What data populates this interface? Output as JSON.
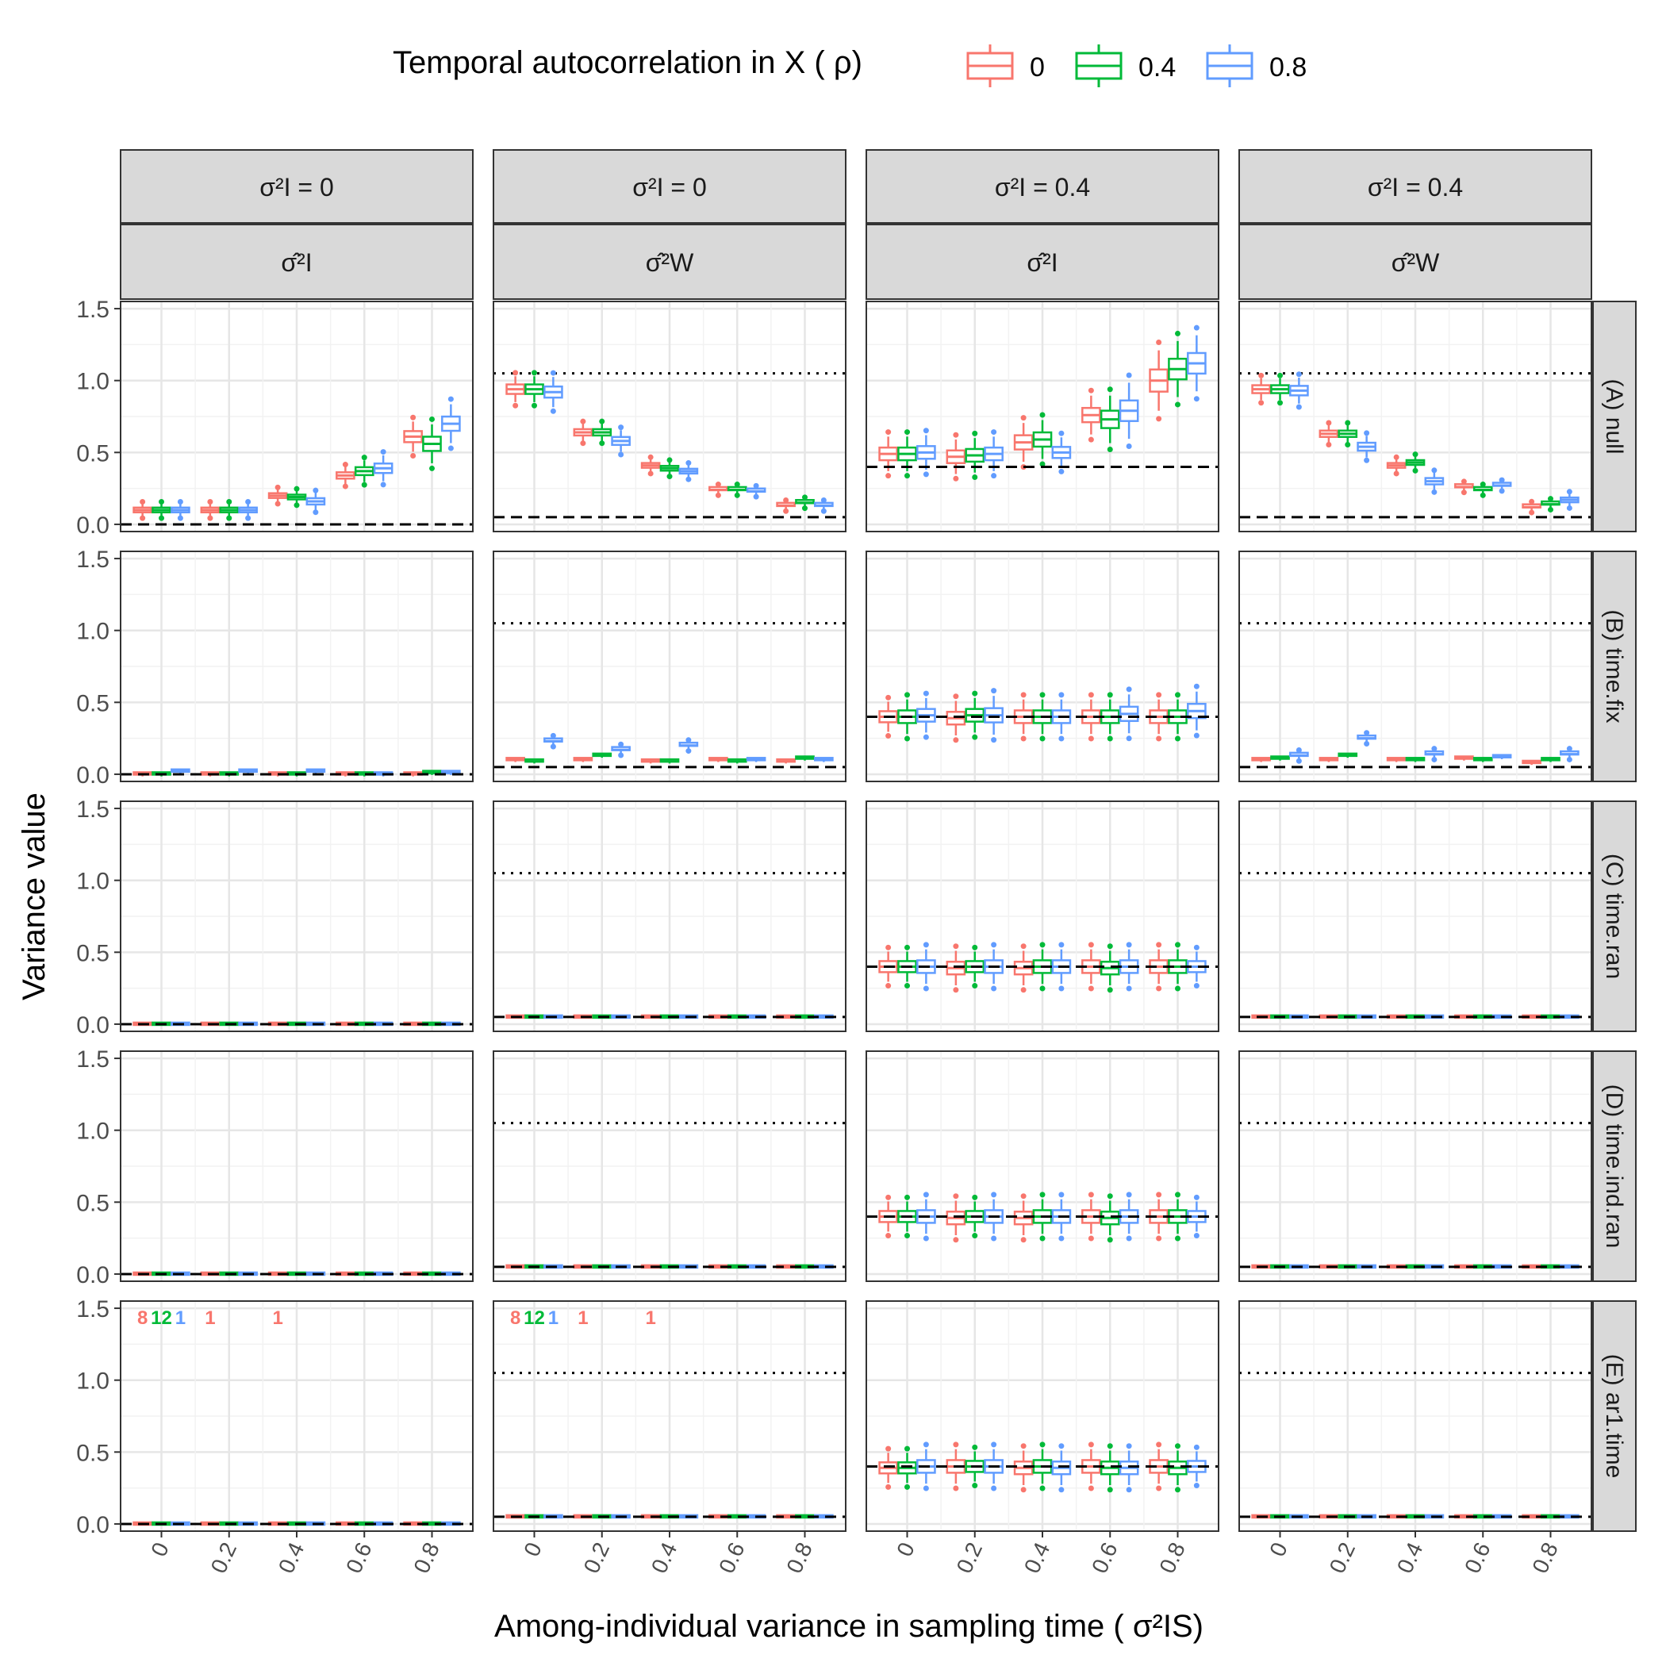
{
  "chart_data": {
    "type": "boxplot",
    "legend": {
      "title": "Temporal autocorrelation in X ( ρ)",
      "position": "top",
      "entries": [
        {
          "label": "0",
          "color": "#F8766D"
        },
        {
          "label": "0.4",
          "color": "#00BA38"
        },
        {
          "label": "0.8",
          "color": "#619CFF"
        }
      ]
    },
    "xlabel": "Among-individual variance in sampling time ( σ²IS)",
    "ylabel": "Variance value",
    "x_ticks": [
      "0",
      "0.2",
      "0.4",
      "0.6",
      "0.8"
    ],
    "y_ticks": [
      "0.0",
      "0.5",
      "1.0",
      "1.5"
    ],
    "ylim": [
      -0.05,
      1.55
    ],
    "grid": true,
    "columns": [
      {
        "strip_top": "σ²I = 0",
        "strip_estimate": "σ̂²I",
        "true_value": 0,
        "ref_dotted": null
      },
      {
        "strip_top": "σ²I = 0",
        "strip_estimate": "σ̂²W",
        "true_value": 0.05,
        "ref_dotted": 1.05
      },
      {
        "strip_top": "σ²I = 0.4",
        "strip_estimate": "σ̂²I",
        "true_value": 0.4,
        "ref_dotted": null
      },
      {
        "strip_top": "σ²I = 0.4",
        "strip_estimate": "σ̂²W",
        "true_value": 0.05,
        "ref_dotted": 1.05
      }
    ],
    "rows": [
      "(A) null",
      "(B) time.fix",
      "(C) time.ran",
      "(D) time.ind.ran",
      "(E) ar1.time"
    ],
    "medians": [
      [
        [
          [
            0.1,
            0.1,
            0.1
          ],
          [
            0.1,
            0.1,
            0.1
          ],
          [
            0.2,
            0.19,
            0.16
          ],
          [
            0.34,
            0.37,
            0.39
          ],
          [
            0.61,
            0.56,
            0.7
          ]
        ],
        [
          [
            0.94,
            0.94,
            0.92
          ],
          [
            0.64,
            0.64,
            0.58
          ],
          [
            0.41,
            0.39,
            0.37
          ],
          [
            0.24,
            0.24,
            0.23
          ],
          [
            0.13,
            0.15,
            0.13
          ]
        ],
        [
          [
            0.49,
            0.49,
            0.5
          ],
          [
            0.47,
            0.48,
            0.49
          ],
          [
            0.57,
            0.59,
            0.5
          ],
          [
            0.76,
            0.73,
            0.79
          ],
          [
            1.0,
            1.08,
            1.12
          ]
        ],
        [
          [
            0.94,
            0.94,
            0.93
          ],
          [
            0.63,
            0.63,
            0.54
          ],
          [
            0.41,
            0.43,
            0.3
          ],
          [
            0.26,
            0.24,
            0.27
          ],
          [
            0.12,
            0.14,
            0.17
          ]
        ]
      ],
      [
        [
          [
            0.0,
            0.0,
            0.02
          ],
          [
            0.0,
            0.0,
            0.02
          ],
          [
            0.0,
            0.0,
            0.02
          ],
          [
            0.0,
            0.0,
            0.0
          ],
          [
            0.0,
            0.01,
            0.01
          ]
        ],
        [
          [
            0.1,
            0.09,
            0.23
          ],
          [
            0.1,
            0.13,
            0.17
          ],
          [
            0.09,
            0.09,
            0.2
          ],
          [
            0.1,
            0.09,
            0.1
          ],
          [
            0.09,
            0.11,
            0.1
          ]
        ],
        [
          [
            0.4,
            0.4,
            0.41
          ],
          [
            0.39,
            0.41,
            0.41
          ],
          [
            0.4,
            0.4,
            0.4
          ],
          [
            0.4,
            0.4,
            0.42
          ],
          [
            0.4,
            0.4,
            0.44
          ]
        ],
        [
          [
            0.1,
            0.11,
            0.13
          ],
          [
            0.1,
            0.13,
            0.25
          ],
          [
            0.1,
            0.1,
            0.14
          ],
          [
            0.11,
            0.1,
            0.12
          ],
          [
            0.08,
            0.1,
            0.14
          ]
        ]
      ],
      [
        [
          [
            0,
            0,
            0
          ],
          [
            0,
            0,
            0
          ],
          [
            0,
            0,
            0
          ],
          [
            0,
            0,
            0
          ],
          [
            0,
            0,
            0
          ]
        ],
        [
          [
            0.05,
            0.05,
            0.05
          ],
          [
            0.05,
            0.05,
            0.05
          ],
          [
            0.05,
            0.05,
            0.05
          ],
          [
            0.05,
            0.05,
            0.05
          ],
          [
            0.05,
            0.05,
            0.05
          ]
        ],
        [
          [
            0.4,
            0.4,
            0.4
          ],
          [
            0.39,
            0.4,
            0.4
          ],
          [
            0.39,
            0.4,
            0.4
          ],
          [
            0.4,
            0.39,
            0.4
          ],
          [
            0.4,
            0.4,
            0.4
          ]
        ],
        [
          [
            0.05,
            0.05,
            0.05
          ],
          [
            0.05,
            0.05,
            0.05
          ],
          [
            0.05,
            0.05,
            0.05
          ],
          [
            0.05,
            0.05,
            0.05
          ],
          [
            0.05,
            0.05,
            0.05
          ]
        ]
      ],
      [
        [
          [
            0,
            0,
            0
          ],
          [
            0,
            0,
            0
          ],
          [
            0,
            0,
            0
          ],
          [
            0,
            0,
            0
          ],
          [
            0,
            0,
            0
          ]
        ],
        [
          [
            0.05,
            0.05,
            0.05
          ],
          [
            0.05,
            0.05,
            0.05
          ],
          [
            0.05,
            0.05,
            0.05
          ],
          [
            0.05,
            0.05,
            0.05
          ],
          [
            0.05,
            0.05,
            0.05
          ]
        ],
        [
          [
            0.4,
            0.4,
            0.4
          ],
          [
            0.39,
            0.4,
            0.4
          ],
          [
            0.39,
            0.4,
            0.4
          ],
          [
            0.4,
            0.39,
            0.4
          ],
          [
            0.4,
            0.4,
            0.4
          ]
        ],
        [
          [
            0.05,
            0.05,
            0.05
          ],
          [
            0.05,
            0.05,
            0.05
          ],
          [
            0.05,
            0.05,
            0.05
          ],
          [
            0.05,
            0.05,
            0.05
          ],
          [
            0.05,
            0.05,
            0.05
          ]
        ]
      ],
      [
        [
          [
            0,
            0,
            0
          ],
          [
            0,
            0,
            0
          ],
          [
            0,
            0,
            0
          ],
          [
            0,
            0,
            0
          ],
          [
            0,
            0,
            0
          ]
        ],
        [
          [
            0.05,
            0.05,
            0.05
          ],
          [
            0.05,
            0.05,
            0.05
          ],
          [
            0.05,
            0.05,
            0.05
          ],
          [
            0.05,
            0.05,
            0.05
          ],
          [
            0.05,
            0.05,
            0.05
          ]
        ],
        [
          [
            0.39,
            0.39,
            0.4
          ],
          [
            0.4,
            0.4,
            0.4
          ],
          [
            0.39,
            0.4,
            0.39
          ],
          [
            0.4,
            0.39,
            0.39
          ],
          [
            0.4,
            0.39,
            0.4
          ]
        ],
        [
          [
            0.05,
            0.05,
            0.05
          ],
          [
            0.05,
            0.05,
            0.05
          ],
          [
            0.05,
            0.05,
            0.05
          ],
          [
            0.05,
            0.05,
            0.05
          ],
          [
            0.05,
            0.05,
            0.05
          ]
        ]
      ]
    ],
    "spreads": [
      [
        [
          [
            0.03,
            0.03,
            0.03
          ],
          [
            0.03,
            0.03,
            0.03
          ],
          [
            0.03,
            0.03,
            0.04
          ],
          [
            0.04,
            0.05,
            0.06
          ],
          [
            0.07,
            0.09,
            0.09
          ]
        ],
        [
          [
            0.06,
            0.06,
            0.07
          ],
          [
            0.04,
            0.04,
            0.05
          ],
          [
            0.03,
            0.03,
            0.03
          ],
          [
            0.02,
            0.02,
            0.02
          ],
          [
            0.02,
            0.02,
            0.02
          ]
        ],
        [
          [
            0.08,
            0.08,
            0.08
          ],
          [
            0.08,
            0.08,
            0.08
          ],
          [
            0.09,
            0.09,
            0.07
          ],
          [
            0.09,
            0.11,
            0.13
          ],
          [
            0.14,
            0.13,
            0.13
          ]
        ],
        [
          [
            0.05,
            0.05,
            0.06
          ],
          [
            0.04,
            0.04,
            0.05
          ],
          [
            0.03,
            0.03,
            0.04
          ],
          [
            0.02,
            0.02,
            0.02
          ],
          [
            0.02,
            0.02,
            0.03
          ]
        ]
      ],
      [
        [
          [
            0.01,
            0.01,
            0.01
          ],
          [
            0.01,
            0.01,
            0.01
          ],
          [
            0.01,
            0.01,
            0.01
          ],
          [
            0.01,
            0.01,
            0.01
          ],
          [
            0.01,
            0.01,
            0.01
          ]
        ],
        [
          [
            0.01,
            0.01,
            0.02
          ],
          [
            0.01,
            0.01,
            0.02
          ],
          [
            0.01,
            0.01,
            0.02
          ],
          [
            0.01,
            0.01,
            0.01
          ],
          [
            0.01,
            0.01,
            0.01
          ]
        ],
        [
          [
            0.07,
            0.08,
            0.08
          ],
          [
            0.08,
            0.08,
            0.09
          ],
          [
            0.08,
            0.08,
            0.08
          ],
          [
            0.08,
            0.08,
            0.09
          ],
          [
            0.08,
            0.08,
            0.09
          ]
        ],
        [
          [
            0.01,
            0.01,
            0.02
          ],
          [
            0.01,
            0.01,
            0.02
          ],
          [
            0.01,
            0.01,
            0.02
          ],
          [
            0.01,
            0.01,
            0.01
          ],
          [
            0.01,
            0.01,
            0.02
          ]
        ]
      ],
      [
        [
          [
            0.005,
            0.005,
            0.005
          ],
          [
            0.005,
            0.005,
            0.005
          ],
          [
            0.005,
            0.005,
            0.005
          ],
          [
            0.005,
            0.005,
            0.005
          ],
          [
            0.005,
            0.005,
            0.005
          ]
        ],
        [
          [
            0.005,
            0.005,
            0.005
          ],
          [
            0.005,
            0.005,
            0.005
          ],
          [
            0.005,
            0.005,
            0.005
          ],
          [
            0.005,
            0.005,
            0.005
          ],
          [
            0.005,
            0.005,
            0.005
          ]
        ],
        [
          [
            0.07,
            0.07,
            0.08
          ],
          [
            0.08,
            0.07,
            0.08
          ],
          [
            0.08,
            0.08,
            0.08
          ],
          [
            0.08,
            0.08,
            0.08
          ],
          [
            0.08,
            0.08,
            0.07
          ]
        ],
        [
          [
            0.005,
            0.005,
            0.005
          ],
          [
            0.005,
            0.005,
            0.005
          ],
          [
            0.005,
            0.005,
            0.005
          ],
          [
            0.005,
            0.005,
            0.005
          ],
          [
            0.005,
            0.005,
            0.005
          ]
        ]
      ],
      [
        [
          [
            0.005,
            0.005,
            0.005
          ],
          [
            0.005,
            0.005,
            0.005
          ],
          [
            0.005,
            0.005,
            0.005
          ],
          [
            0.005,
            0.005,
            0.005
          ],
          [
            0.005,
            0.005,
            0.005
          ]
        ],
        [
          [
            0.005,
            0.005,
            0.005
          ],
          [
            0.005,
            0.005,
            0.005
          ],
          [
            0.005,
            0.005,
            0.005
          ],
          [
            0.005,
            0.005,
            0.005
          ],
          [
            0.005,
            0.005,
            0.005
          ]
        ],
        [
          [
            0.07,
            0.07,
            0.08
          ],
          [
            0.08,
            0.07,
            0.08
          ],
          [
            0.08,
            0.08,
            0.08
          ],
          [
            0.08,
            0.08,
            0.08
          ],
          [
            0.08,
            0.08,
            0.07
          ]
        ],
        [
          [
            0.005,
            0.005,
            0.005
          ],
          [
            0.005,
            0.005,
            0.005
          ],
          [
            0.005,
            0.005,
            0.005
          ],
          [
            0.005,
            0.005,
            0.005
          ],
          [
            0.005,
            0.005,
            0.005
          ]
        ]
      ],
      [
        [
          [
            0.005,
            0.005,
            0.005
          ],
          [
            0.005,
            0.005,
            0.005
          ],
          [
            0.005,
            0.005,
            0.005
          ],
          [
            0.005,
            0.005,
            0.005
          ],
          [
            0.005,
            0.005,
            0.005
          ]
        ],
        [
          [
            0.005,
            0.005,
            0.005
          ],
          [
            0.005,
            0.005,
            0.005
          ],
          [
            0.005,
            0.005,
            0.005
          ],
          [
            0.005,
            0.005,
            0.005
          ],
          [
            0.005,
            0.005,
            0.005
          ]
        ],
        [
          [
            0.07,
            0.07,
            0.08
          ],
          [
            0.08,
            0.07,
            0.08
          ],
          [
            0.08,
            0.08,
            0.08
          ],
          [
            0.08,
            0.08,
            0.08
          ],
          [
            0.08,
            0.08,
            0.07
          ]
        ],
        [
          [
            0.005,
            0.005,
            0.005
          ],
          [
            0.005,
            0.005,
            0.005
          ],
          [
            0.005,
            0.005,
            0.005
          ],
          [
            0.005,
            0.005,
            0.005
          ],
          [
            0.005,
            0.005,
            0.005
          ]
        ]
      ]
    ],
    "annotations": [
      {
        "row": 4,
        "col": 0,
        "items": [
          {
            "x_index": 0,
            "series": 0,
            "text": "8"
          },
          {
            "x_index": 0,
            "series": 1,
            "text": "12"
          },
          {
            "x_index": 0,
            "series": 2,
            "text": "1"
          },
          {
            "x_index": 1,
            "series": 0,
            "text": "1"
          },
          {
            "x_index": 2,
            "series": 0,
            "text": "1"
          }
        ]
      },
      {
        "row": 4,
        "col": 1,
        "items": [
          {
            "x_index": 0,
            "series": 0,
            "text": "8"
          },
          {
            "x_index": 0,
            "series": 1,
            "text": "12"
          },
          {
            "x_index": 0,
            "series": 2,
            "text": "1"
          },
          {
            "x_index": 1,
            "series": 0,
            "text": "1"
          },
          {
            "x_index": 2,
            "series": 0,
            "text": "1"
          }
        ]
      }
    ],
    "annotation_y": 1.44
  }
}
